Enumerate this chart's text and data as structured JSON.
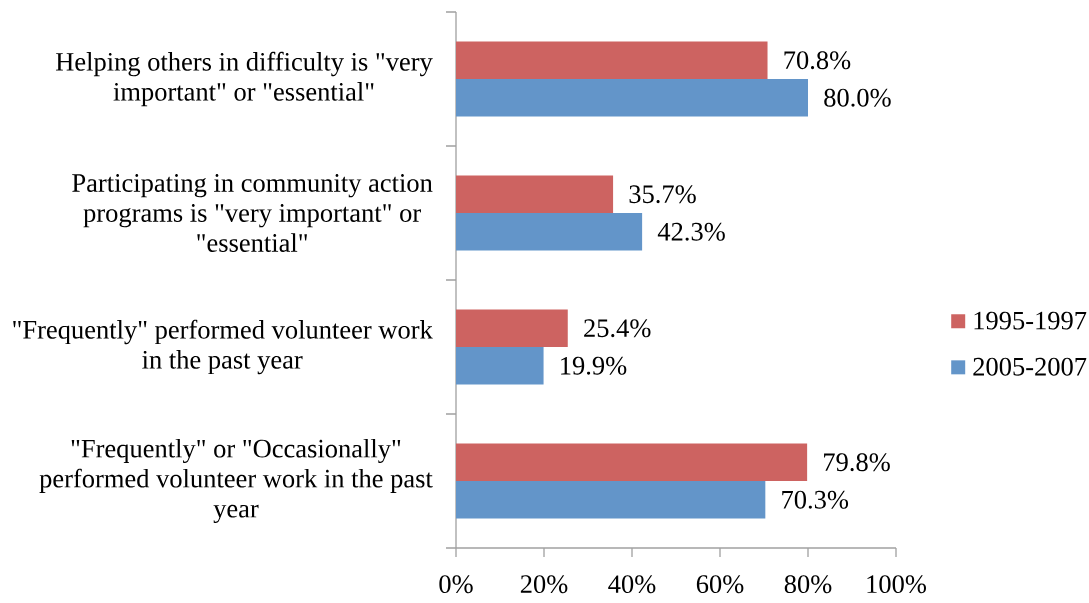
{
  "chart_data": {
    "type": "bar",
    "orientation": "horizontal",
    "categories": [
      "Helping others in difficulty is \"very important\" or \"essential\"",
      "Participating in community action programs is \"very important\" or \"essential\"",
      "\"Frequently\" performed volunteer work in the past year",
      "\"Frequently\" or \"Occasionally\" performed volunteer work in the past year"
    ],
    "series": [
      {
        "name": "1995-1997",
        "color": "#cd6361",
        "values": [
          70.8,
          35.7,
          25.4,
          79.8
        ],
        "value_labels": [
          "70.8%",
          "35.7%",
          "25.4%",
          "79.8%"
        ]
      },
      {
        "name": "2005-2007",
        "color": "#6395c9",
        "values": [
          80.0,
          42.3,
          19.9,
          70.3
        ],
        "value_labels": [
          "80.0%",
          "42.3%",
          "19.9%",
          "70.3%"
        ]
      }
    ],
    "xlim": [
      0,
      100
    ],
    "xticks": [
      {
        "value": 0,
        "label": "0%"
      },
      {
        "value": 20,
        "label": "20%"
      },
      {
        "value": 40,
        "label": "40%"
      },
      {
        "value": 60,
        "label": "60%"
      },
      {
        "value": 80,
        "label": "80%"
      },
      {
        "value": 100,
        "label": "100%"
      }
    ],
    "legend": "right"
  }
}
